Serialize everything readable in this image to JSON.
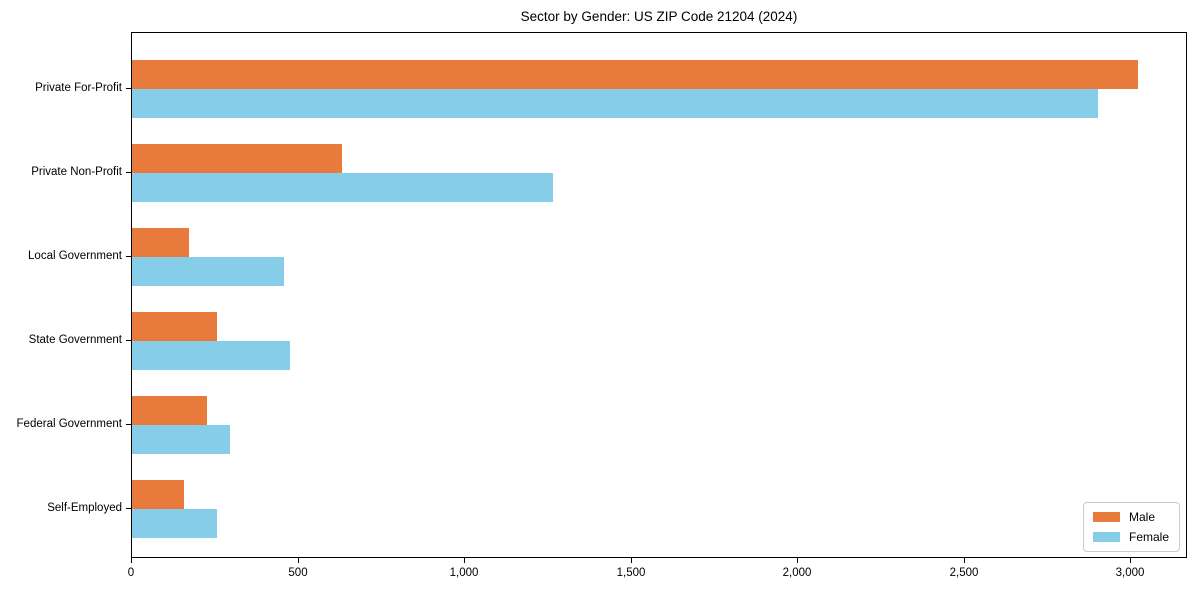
{
  "chart_data": {
    "type": "bar",
    "orientation": "horizontal",
    "title": "Sector by Gender: US ZIP Code 21204 (2024)",
    "categories": [
      "Private For-Profit",
      "Private Non-Profit",
      "Local Government",
      "State Government",
      "Federal Government",
      "Self-Employed"
    ],
    "series": [
      {
        "name": "Male",
        "color": "#e87a3b",
        "values": [
          3020,
          630,
          170,
          255,
          225,
          155
        ]
      },
      {
        "name": "Female",
        "color": "#85cde8",
        "values": [
          2900,
          1265,
          455,
          475,
          295,
          255
        ]
      }
    ],
    "xlabel": "",
    "ylabel": "",
    "xlim": [
      0,
      3171
    ],
    "xticks": {
      "values": [
        0,
        500,
        1000,
        1500,
        2000,
        2500,
        3000
      ],
      "labels": [
        "0",
        "500",
        "1,000",
        "1,500",
        "2,000",
        "2,500",
        "3,000"
      ]
    },
    "grid": false,
    "legend": {
      "position": "lower right"
    }
  }
}
